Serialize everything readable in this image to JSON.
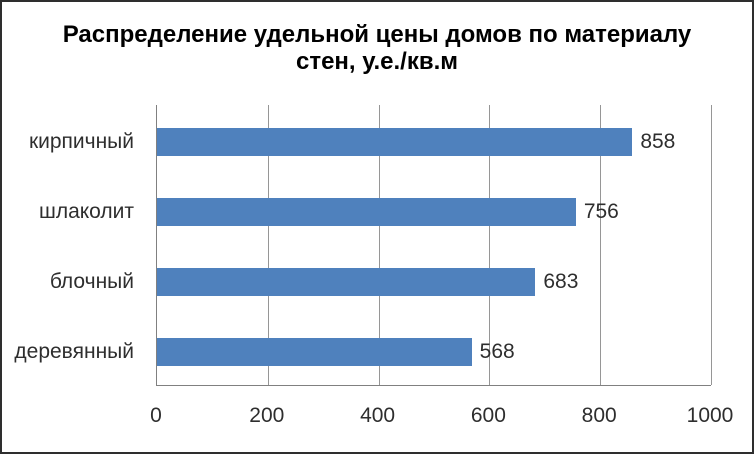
{
  "chart": {
    "title_line1": "Распределение удельной цены домов по материалу",
    "title_line2": "стен, у.е./кв.м"
  },
  "chart_data": {
    "type": "bar",
    "orientation": "horizontal",
    "title": "Распределение удельной цены домов по материалу стен, у.е./кв.м",
    "categories": [
      "кирпичный",
      "шлаколит",
      "блочный",
      "деревянный"
    ],
    "values": [
      858,
      756,
      683,
      568
    ],
    "data_labels": [
      "858",
      "756",
      "683",
      "568"
    ],
    "xlabel": "",
    "ylabel": "",
    "xlim": [
      0,
      1000
    ],
    "xticks": [
      "0",
      "200",
      "400",
      "600",
      "800",
      "1000"
    ],
    "grid": "vertical-major",
    "legend": "none",
    "colors": {
      "bar": "#4F81BD",
      "gridline": "#969696",
      "axis_line": "#808080",
      "label_text": "#2e2e2e",
      "title_text": "#000000",
      "frame_border": "#2e2e2e",
      "background": "#ffffff"
    }
  }
}
